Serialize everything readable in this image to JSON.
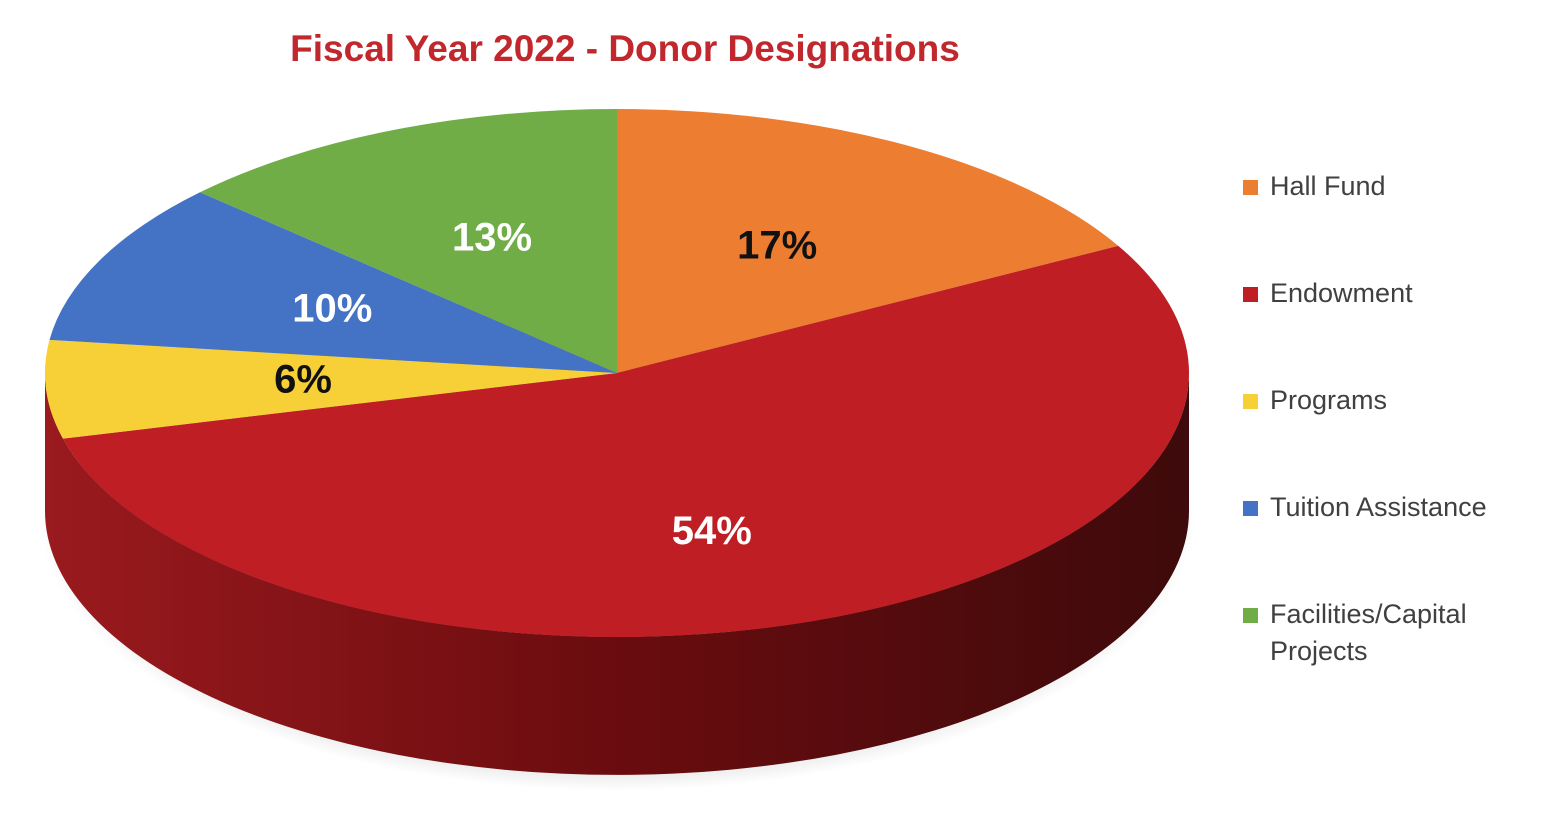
{
  "chart_data": {
    "type": "pie",
    "title": "Fiscal Year 2022 - Donor Designations",
    "slices": [
      {
        "label": "Hall Fund",
        "value": 17,
        "display": "17%",
        "color": "#ed7d31",
        "label_color": "#111111"
      },
      {
        "label": "Endowment",
        "value": 54,
        "display": "54%",
        "color": "#be1e24",
        "label_color": "#ffffff"
      },
      {
        "label": "Programs",
        "value": 6,
        "display": "6%",
        "color": "#f7d038",
        "label_color": "#111111"
      },
      {
        "label": "Tuition Assistance",
        "value": 10,
        "display": "10%",
        "color": "#4472c4",
        "label_color": "#ffffff"
      },
      {
        "label": "Facilities/Capital\nProjects",
        "value": 13,
        "display": "13%",
        "color": "#70ad47",
        "label_color": "#ffffff"
      }
    ],
    "legend_position": "right",
    "style": "3d"
  }
}
